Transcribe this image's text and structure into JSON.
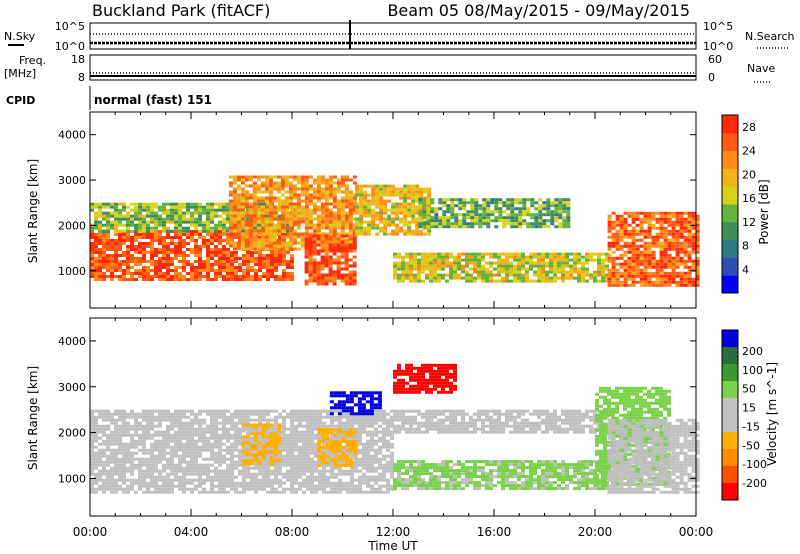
{
  "header": {
    "station": "Buckland Park (fitACF)",
    "beam_and_dates": "Beam 05 08/May/2015 - 09/May/2015"
  },
  "strips": {
    "nsky_label": "N.Sky",
    "nsearch_label": "N.Search",
    "noise_tick_top": "10^5",
    "noise_tick_bottom": "10^0",
    "freq_label": "Freq.",
    "freq_unit": "[MHz]",
    "nave_label": "Nave",
    "freq_ticks": [
      "18",
      "8"
    ],
    "nave_ticks": [
      "60",
      "0"
    ],
    "cpid_label": "CPID",
    "cpid_text": "normal (fast) 151"
  },
  "colors": {
    "power_scale": [
      "#0000ff",
      "#2d4fb4",
      "#2f7a88",
      "#3e8f5a",
      "#63b33a",
      "#d6d21a",
      "#f3b21a",
      "#ff8a1a",
      "#ff5a14",
      "#ff2a0a"
    ],
    "velocity_scale": [
      "#0000e0",
      "#2a6c3a",
      "#3a9a2a",
      "#7ad14a",
      "#c0c0c0",
      "#c0c0c0",
      "#ffb000",
      "#ff8a00",
      "#ff5000",
      "#ff0000"
    ],
    "ground_scatter": "#bdbdbd"
  },
  "chart_data": [
    {
      "type": "heatmap",
      "title": "Power",
      "xlabel": "Time UT",
      "ylabel": "Slant Range [km]",
      "x_ticks": [
        "00:00",
        "04:00",
        "08:00",
        "12:00",
        "16:00",
        "20:00",
        "00:00"
      ],
      "y_ticks": [
        "1000",
        "2000",
        "3000",
        "4000"
      ],
      "xlim_hours": [
        0,
        24
      ],
      "ylim_km": [
        180,
        4500
      ],
      "colorbar": {
        "label": "Power [dB]",
        "ticks": [
          "4",
          "8",
          "12",
          "16",
          "20",
          "24",
          "28"
        ],
        "range": [
          0,
          30
        ]
      },
      "regions": [
        {
          "t0": 0.0,
          "t1": 8.0,
          "r0": 800,
          "r1": 1900,
          "value_db": 26
        },
        {
          "t0": 0.0,
          "t1": 8.0,
          "r0": 1900,
          "r1": 2500,
          "value_db": 14
        },
        {
          "t0": 5.5,
          "t1": 10.5,
          "r0": 1500,
          "r1": 3100,
          "value_db": 22
        },
        {
          "t0": 8.5,
          "t1": 10.5,
          "r0": 700,
          "r1": 1800,
          "value_db": 27
        },
        {
          "t0": 10.5,
          "t1": 13.5,
          "r0": 1800,
          "r1": 2900,
          "value_db": 19
        },
        {
          "t0": 13.0,
          "t1": 19.0,
          "r0": 2000,
          "r1": 2600,
          "value_db": 13
        },
        {
          "t0": 12.0,
          "t1": 20.5,
          "r0": 800,
          "r1": 1400,
          "value_db": 17
        },
        {
          "t0": 20.5,
          "t1": 24.0,
          "r0": 700,
          "r1": 2300,
          "value_db": 25
        }
      ]
    },
    {
      "type": "heatmap",
      "title": "Velocity",
      "xlabel": "Time UT",
      "ylabel": "Slant Range [km]",
      "x_ticks": [
        "00:00",
        "04:00",
        "08:00",
        "12:00",
        "16:00",
        "20:00",
        "00:00"
      ],
      "y_ticks": [
        "1000",
        "2000",
        "3000",
        "4000"
      ],
      "xlim_hours": [
        0,
        24
      ],
      "ylim_km": [
        180,
        4500
      ],
      "colorbar": {
        "label": "Velocity [m s^-1]",
        "ticks": [
          "200",
          "100",
          "50",
          "15",
          "-15",
          "-50",
          "-100",
          "-200"
        ],
        "range": [
          -250,
          250
        ]
      },
      "regions": [
        {
          "t0": 0.0,
          "t1": 12.0,
          "r0": 700,
          "r1": 2500,
          "value_ms": 0
        },
        {
          "t0": 6.0,
          "t1": 7.5,
          "r0": 1300,
          "r1": 2200,
          "value_ms": -60
        },
        {
          "t0": 9.0,
          "t1": 10.5,
          "r0": 1300,
          "r1": 2100,
          "value_ms": -60
        },
        {
          "t0": 9.5,
          "t1": 11.5,
          "r0": 2400,
          "r1": 2900,
          "value_ms": 220
        },
        {
          "t0": 12.0,
          "t1": 14.5,
          "r0": 2900,
          "r1": 3500,
          "value_ms": -220
        },
        {
          "t0": 12.0,
          "t1": 20.5,
          "r0": 2000,
          "r1": 2500,
          "value_ms": 0
        },
        {
          "t0": 12.0,
          "t1": 20.5,
          "r0": 800,
          "r1": 1400,
          "value_ms": 60
        },
        {
          "t0": 20.0,
          "t1": 23.0,
          "r0": 900,
          "r1": 3000,
          "value_ms": 70
        },
        {
          "t0": 20.5,
          "t1": 24.0,
          "r0": 700,
          "r1": 2300,
          "value_ms": 0
        }
      ]
    }
  ]
}
